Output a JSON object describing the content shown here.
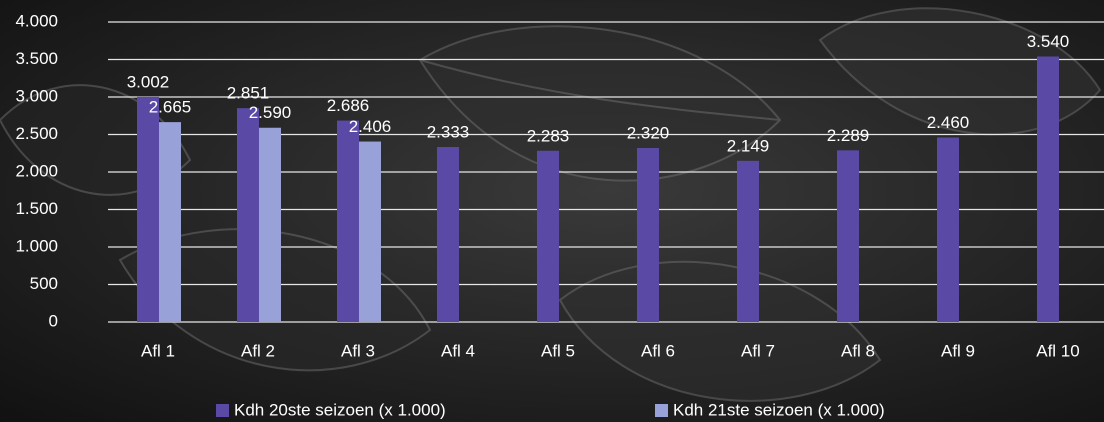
{
  "chart_data": {
    "type": "bar",
    "categories": [
      "Afl 1",
      "Afl 2",
      "Afl 3",
      "Afl 4",
      "Afl 5",
      "Afl 6",
      "Afl 7",
      "Afl 8",
      "Afl 9",
      "Afl 10"
    ],
    "series": [
      {
        "name": "Kdh 20ste seizoen (x 1.000)",
        "color": "#5a4aa6",
        "values": [
          3002,
          2851,
          2686,
          2333,
          2283,
          2320,
          2149,
          2289,
          2460,
          3540
        ],
        "value_labels": [
          "3.002",
          "2.851",
          "2.686",
          "2.333",
          "2.283",
          "2.320",
          "2.149",
          "2.289",
          "2.460",
          "3.540"
        ]
      },
      {
        "name": "Kdh 21ste seizoen (x 1.000)",
        "color": "#98a2d8",
        "values": [
          2665,
          2590,
          2406,
          null,
          null,
          null,
          null,
          null,
          null,
          null
        ],
        "value_labels": [
          "2.665",
          "2.590",
          "2.406",
          null,
          null,
          null,
          null,
          null,
          null,
          null
        ]
      }
    ],
    "ylim": [
      0,
      4000
    ],
    "yticks": [
      0,
      500,
      {
        "value": 1000,
        "label": "1.000"
      },
      {
        "value": 1500,
        "label": "1.500"
      },
      {
        "value": 2000,
        "label": "2.000"
      },
      {
        "value": 2500,
        "label": "2.500"
      },
      {
        "value": 3000,
        "label": "3.000"
      },
      {
        "value": 3500,
        "label": "3.500"
      },
      {
        "value": 4000,
        "label": "4.000"
      }
    ],
    "grid": true,
    "legend": "bottom"
  }
}
